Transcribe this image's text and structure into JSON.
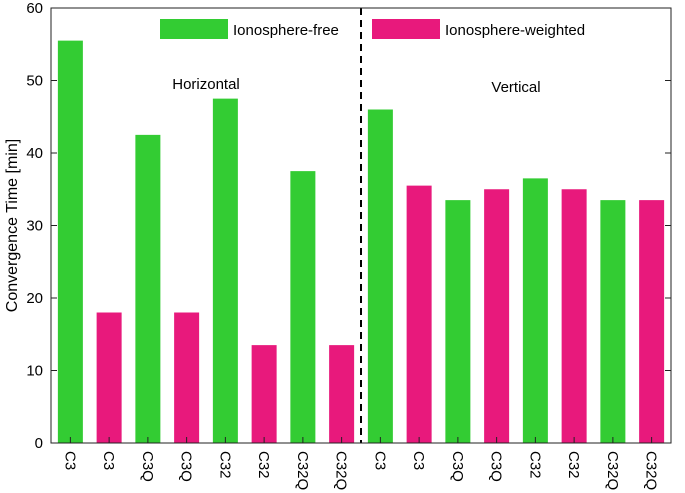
{
  "chart_data": {
    "type": "bar",
    "ylabel": "Convergence Time  [min]",
    "ylim": [
      0,
      60
    ],
    "yticks": [
      0,
      10,
      20,
      30,
      40,
      50,
      60
    ],
    "grid": false,
    "legend_placement": "top-center",
    "categories": [
      "C3",
      "C3",
      "C3Q",
      "C3Q",
      "C32",
      "C32",
      "C32Q",
      "C32Q",
      "C3",
      "C3",
      "C3Q",
      "C3Q",
      "C32",
      "C32",
      "C32Q",
      "C32Q"
    ],
    "series": [
      {
        "name": "Ionosphere-free",
        "color": "#33cc33",
        "values": [
          55.5,
          null,
          42.5,
          null,
          47.5,
          null,
          37.5,
          null,
          46,
          null,
          33.5,
          null,
          36.5,
          null,
          33.5,
          null
        ]
      },
      {
        "name": "Ionosphere-weighted",
        "color": "#e8197c",
        "values": [
          null,
          18,
          null,
          18,
          null,
          13.5,
          null,
          13.5,
          null,
          35.5,
          null,
          35,
          null,
          35,
          null,
          33.5
        ]
      }
    ],
    "panels": [
      {
        "label": "Horizontal",
        "start": 0,
        "end": 7
      },
      {
        "label": "Vertical",
        "start": 8,
        "end": 15
      }
    ],
    "divider": {
      "style": "dashed",
      "between": [
        7,
        8
      ]
    }
  }
}
